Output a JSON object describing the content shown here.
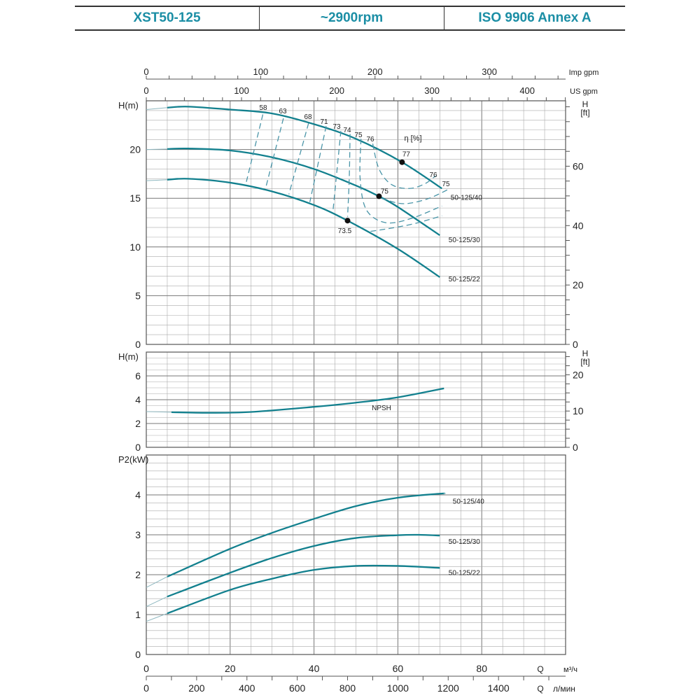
{
  "header": {
    "model": "XST50-125",
    "speed": "~2900rpm",
    "standard": "ISO 9906   Annex A"
  },
  "colors": {
    "curve": "#12808e",
    "dashed": "#4a95a8",
    "header_text": "#1b8ea5",
    "grid": "#9a9a9a"
  },
  "chart_data": [
    {
      "type": "line",
      "title": "",
      "ylabel": "H(m)",
      "y2label": "H [ft]",
      "xlabel": "Q",
      "xlim": [
        0,
        100
      ],
      "ylim": [
        0,
        25
      ],
      "y_ticks": [
        0,
        5,
        10,
        15,
        20
      ],
      "y2_ticks": [
        0,
        20,
        40,
        60
      ],
      "top_axes": [
        {
          "unit": "Imp gpm",
          "ticks": [
            0,
            100,
            200,
            300
          ]
        },
        {
          "unit": "US gpm",
          "ticks": [
            0,
            100,
            200,
            300,
            400
          ]
        }
      ],
      "grid": true,
      "series": [
        {
          "name": "50-125/40",
          "x": [
            0,
            5,
            10,
            20,
            30,
            40,
            50,
            61,
            70.5
          ],
          "y": [
            24.1,
            24.3,
            24.4,
            24.1,
            23.7,
            22.6,
            21.1,
            18.7,
            16.0
          ]
        },
        {
          "name": "50-125/30",
          "x": [
            0,
            5,
            10,
            20,
            30,
            40,
            50,
            55.5,
            60,
            70
          ],
          "y": [
            20.0,
            20.05,
            20.1,
            19.9,
            19.2,
            18.0,
            16.3,
            15.2,
            14.1,
            11.2
          ]
        },
        {
          "name": "50-125/22",
          "x": [
            0,
            5,
            10,
            20,
            30,
            40,
            48,
            60,
            70
          ],
          "y": [
            16.8,
            16.9,
            17.0,
            16.6,
            15.7,
            14.3,
            12.7,
            9.8,
            6.9
          ]
        }
      ],
      "efficiency_label": "η [%]",
      "efficiency_contours": [
        {
          "label": "58",
          "x": [
            27.8,
            23.7
          ],
          "y": [
            23.6,
            16.4
          ]
        },
        {
          "label": "63",
          "x": [
            32.7,
            28.5
          ],
          "y": [
            23.2,
            16.1
          ]
        },
        {
          "label": "68",
          "x": [
            38.7,
            34.0
          ],
          "y": [
            22.7,
            15.4
          ]
        },
        {
          "label": "71",
          "x": [
            42.9,
            39.0
          ],
          "y": [
            22.4,
            14.6
          ]
        },
        {
          "label": "73",
          "x": [
            46.4,
            44.5
          ],
          "y": [
            21.9,
            13.6
          ]
        },
        {
          "label": "74",
          "x": [
            48.6,
            48.4,
            48.0
          ],
          "y": [
            21.6,
            17.0,
            13.1
          ]
        },
        {
          "label": "75",
          "x": [
            51.2,
            51.0,
            52.5,
            57.0,
            63.0,
            70.5
          ],
          "y": [
            21.1,
            17.0,
            13.8,
            12.5,
            12.9,
            14.2
          ]
        },
        {
          "label": "76",
          "x": [
            54.0,
            55.5,
            58.5,
            62.8,
            66.5,
            69.0
          ],
          "y": [
            20.6,
            18.0,
            16.4,
            16.0,
            16.5,
            17.3
          ]
        },
        {
          "label": "75",
          "x": [
            56.0,
            60.0,
            63.0,
            67.5,
            72.0
          ],
          "y": [
            15.0,
            14.5,
            14.5,
            15.0,
            15.9
          ]
        },
        {
          "label": "73.5",
          "x": [
            53.5,
            58.0,
            64.0,
            70.5
          ],
          "y": [
            11.6,
            11.9,
            12.4,
            13.2
          ]
        }
      ],
      "bep_points": [
        {
          "label": "77",
          "x": 61,
          "y": 18.7
        },
        {
          "label": "75",
          "x": 55.5,
          "y": 15.2
        },
        {
          "label": "73.5",
          "x": 48,
          "y": 12.7
        }
      ]
    },
    {
      "type": "line",
      "ylabel": "H(m)",
      "y2label": "H [ft]",
      "xlim": [
        0,
        100
      ],
      "ylim": [
        0,
        8
      ],
      "y_ticks": [
        0,
        2,
        4,
        6
      ],
      "y2_ticks": [
        0,
        10,
        20
      ],
      "grid": true,
      "series": [
        {
          "name": "NPSH",
          "x": [
            0,
            6,
            15,
            25,
            40,
            50,
            60,
            71
          ],
          "y": [
            3.0,
            2.95,
            2.9,
            2.97,
            3.4,
            3.75,
            4.2,
            4.95
          ]
        }
      ]
    },
    {
      "type": "line",
      "ylabel": "P2(kW)",
      "xlim": [
        0,
        100
      ],
      "ylim": [
        0,
        5
      ],
      "y_ticks": [
        0,
        1,
        2,
        3,
        4
      ],
      "x_ticks": [
        0,
        20,
        40,
        60,
        80
      ],
      "x_unit": "м³/ч",
      "x_label": "Q",
      "x2_unit": "л/мин",
      "x2_label": "Q",
      "x2_ticks": [
        0,
        200,
        400,
        600,
        800,
        1000,
        1200,
        1400
      ],
      "grid": true,
      "series": [
        {
          "name": "50-125/40",
          "x": [
            0,
            5,
            20,
            30,
            40,
            50,
            60,
            70,
            71
          ],
          "y": [
            1.68,
            1.95,
            2.65,
            3.05,
            3.4,
            3.72,
            3.93,
            4.03,
            4.03
          ]
        },
        {
          "name": "50-125/30",
          "x": [
            0,
            5,
            20,
            30,
            40,
            50,
            60,
            65,
            70
          ],
          "y": [
            1.2,
            1.45,
            2.05,
            2.42,
            2.72,
            2.92,
            2.99,
            3.0,
            2.98
          ]
        },
        {
          "name": "50-125/22",
          "x": [
            0,
            5,
            20,
            30,
            40,
            50,
            60,
            70
          ],
          "y": [
            0.83,
            1.03,
            1.62,
            1.9,
            2.12,
            2.22,
            2.22,
            2.17
          ]
        }
      ]
    }
  ]
}
